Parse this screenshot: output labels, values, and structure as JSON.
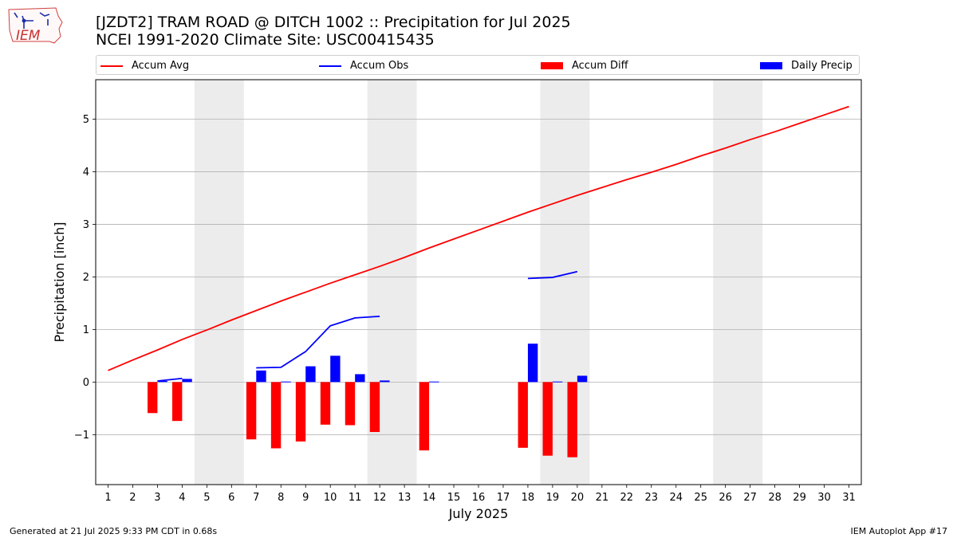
{
  "header": {
    "title_line1": "[JZDT2] TRAM ROAD @ DITCH 1002 :: Precipitation for Jul 2025",
    "title_line2": "NCEI 1991-2020 Climate Site: USC00415435",
    "logo_text": "IEM"
  },
  "footer": {
    "left": "Generated at 21 Jul 2025 9:33 PM CDT in 0.68s",
    "right": "IEM Autoplot App #17"
  },
  "colors": {
    "accum_avg": "#ff0000",
    "accum_obs": "#0000ff",
    "accum_diff": "#ff0000",
    "daily_precip": "#0000ff",
    "weekend_shade": "#ececec",
    "grid": "#b0b0b0"
  },
  "chart_data": {
    "type": "bar",
    "xlabel": "July 2025",
    "ylabel": "Precipitation [inch]",
    "xlim": [
      0.5,
      31.5
    ],
    "ylim": [
      -1.95,
      5.75
    ],
    "x_ticks": [
      1,
      2,
      3,
      4,
      5,
      6,
      7,
      8,
      9,
      10,
      11,
      12,
      13,
      14,
      15,
      16,
      17,
      18,
      19,
      20,
      21,
      22,
      23,
      24,
      25,
      26,
      27,
      28,
      29,
      30,
      31
    ],
    "y_ticks": [
      -1,
      0,
      1,
      2,
      3,
      4,
      5
    ],
    "y_tick_labels": [
      "−1",
      "0",
      "1",
      "2",
      "3",
      "4",
      "5"
    ],
    "grid": "horizontal",
    "legend_position": "top",
    "weekend_spans": [
      [
        5,
        6
      ],
      [
        12,
        13
      ],
      [
        19,
        20
      ],
      [
        26,
        27
      ]
    ],
    "legend": [
      {
        "label": "Accum Avg",
        "kind": "line",
        "color": "#ff0000"
      },
      {
        "label": "Accum Obs",
        "kind": "line",
        "color": "#0000ff"
      },
      {
        "label": "Accum Diff",
        "kind": "patch",
        "color": "#ff0000"
      },
      {
        "label": "Daily Precip",
        "kind": "patch",
        "color": "#0000ff"
      }
    ],
    "series": [
      {
        "name": "Accum Avg",
        "type": "line",
        "x": [
          1,
          2,
          3,
          4,
          5,
          6,
          7,
          8,
          9,
          10,
          11,
          12,
          13,
          14,
          15,
          16,
          17,
          18,
          19,
          20,
          21,
          22,
          23,
          24,
          25,
          26,
          27,
          28,
          29,
          30,
          31
        ],
        "values": [
          0.22,
          0.42,
          0.61,
          0.81,
          0.99,
          1.18,
          1.36,
          1.54,
          1.71,
          1.88,
          2.04,
          2.2,
          2.37,
          2.55,
          2.72,
          2.89,
          3.06,
          3.23,
          3.39,
          3.55,
          3.7,
          3.85,
          3.99,
          4.14,
          4.3,
          4.45,
          4.61,
          4.76,
          4.92,
          5.08,
          5.24
        ]
      },
      {
        "name": "Accum Obs",
        "type": "line",
        "segments": [
          {
            "x": [
              3,
              4
            ],
            "values": [
              0.02,
              0.07
            ]
          },
          {
            "x": [
              7,
              8,
              9,
              10,
              11,
              12
            ],
            "values": [
              0.27,
              0.28,
              0.58,
              1.07,
              1.22,
              1.25
            ]
          },
          {
            "x": [
              18,
              19,
              20
            ],
            "values": [
              1.97,
              1.99,
              2.1
            ]
          }
        ]
      },
      {
        "name": "Accum Diff",
        "type": "bar",
        "x": [
          3,
          4,
          7,
          8,
          9,
          10,
          11,
          12,
          14,
          18,
          19,
          20
        ],
        "values": [
          -0.59,
          -0.74,
          -1.09,
          -1.26,
          -1.13,
          -0.81,
          -0.82,
          -0.95,
          -1.3,
          -1.25,
          -1.4,
          -1.43
        ]
      },
      {
        "name": "Daily Precip",
        "type": "bar",
        "x": [
          3,
          4,
          7,
          8,
          9,
          10,
          11,
          12,
          14,
          18,
          19,
          20
        ],
        "values": [
          0.02,
          0.06,
          0.22,
          0.01,
          0.3,
          0.5,
          0.15,
          0.03,
          0.01,
          0.73,
          0.01,
          0.12
        ]
      }
    ]
  }
}
